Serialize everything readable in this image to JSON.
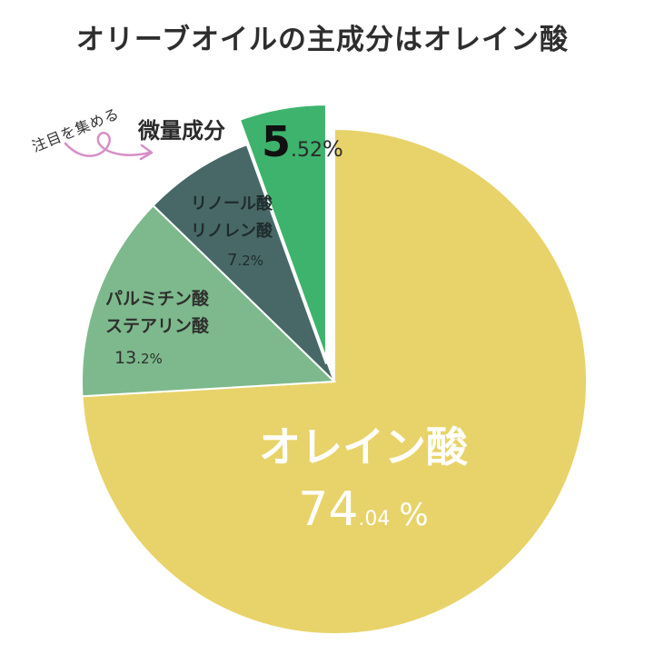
{
  "title": "オリーブオイルの主成分はオレイン酸",
  "annotation": {
    "note": "注目を集める",
    "callout": "微量成分",
    "arrow_color": "#d58fc6"
  },
  "chart_data": {
    "type": "pie",
    "title": "オリーブオイルの主成分はオレイン酸",
    "start_angle": "12 o'clock, clockwise",
    "slices": [
      {
        "label": "オレイン酸",
        "label_lines": [
          "オレイン酸"
        ],
        "value": 74.04,
        "int_part": "74",
        "dec_part": ".04",
        "pct": "%",
        "color": "#e8d36a"
      },
      {
        "label": "パルミチン酸 ステアリン酸",
        "label_lines": [
          "パルミチン酸",
          "ステアリン酸"
        ],
        "value": 13.2,
        "int_part": "13",
        "dec_part": ".2",
        "pct": "%",
        "color": "#7db98c"
      },
      {
        "label": "リノール酸 リノレン酸",
        "label_lines": [
          "リノール酸",
          "リノレン酸"
        ],
        "value": 7.2,
        "int_part": "7",
        "dec_part": ".2",
        "pct": "%",
        "color": "#476867"
      },
      {
        "label": "微量成分",
        "label_lines": [],
        "value": 5.52,
        "int_part": "5",
        "dec_part": ".52",
        "pct": "%",
        "color": "#3eb36d",
        "exploded": true
      }
    ]
  }
}
